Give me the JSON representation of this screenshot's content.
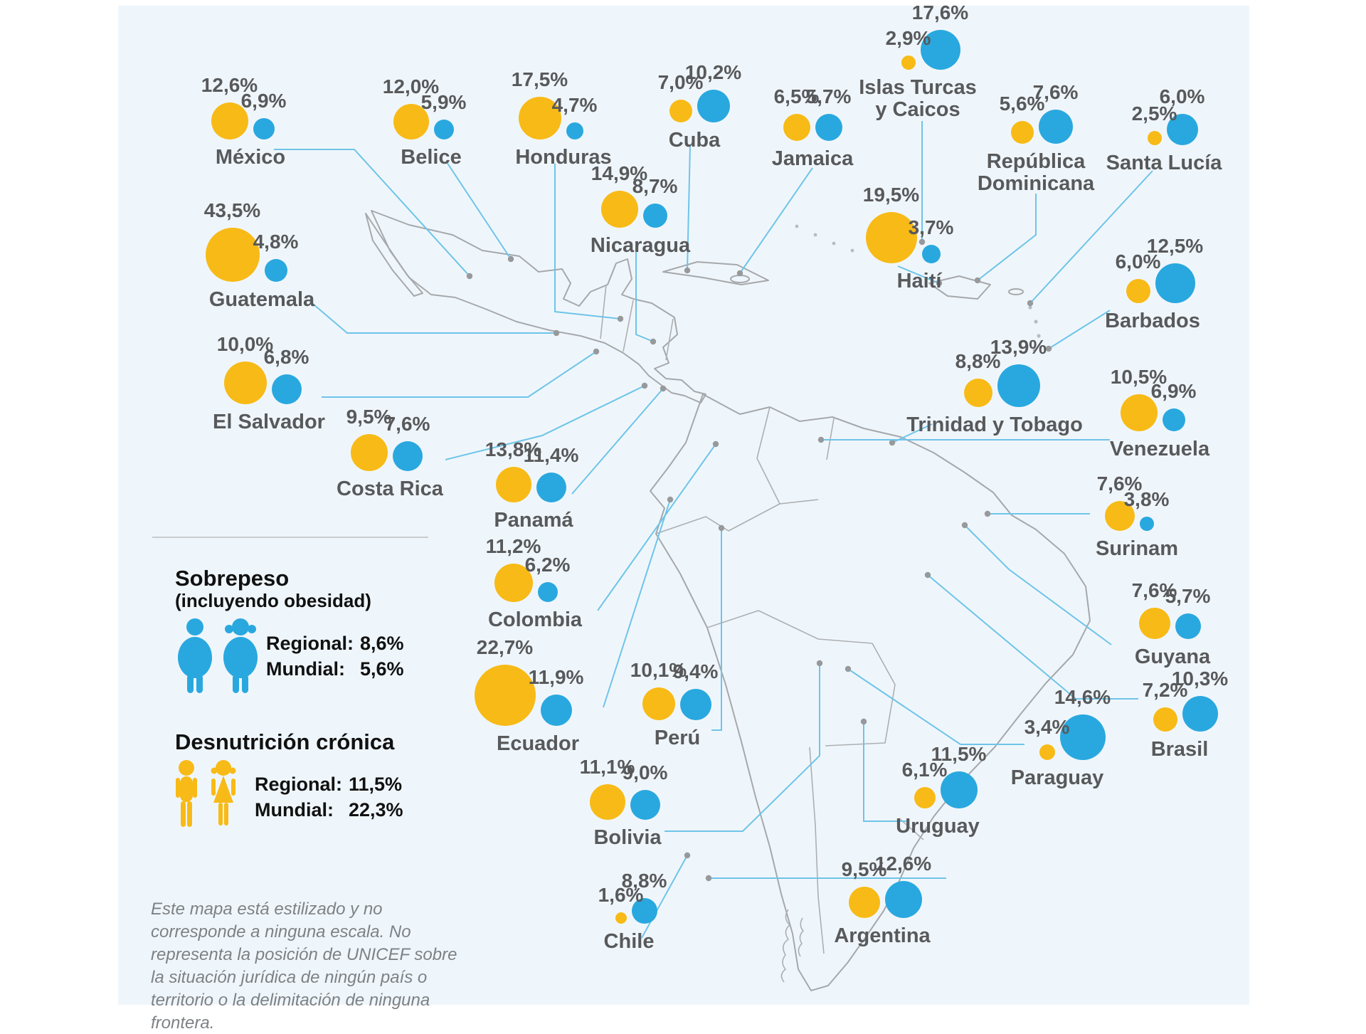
{
  "legend": {
    "sobrepeso": {
      "title": "Sobrepeso",
      "subtitle": "(incluyendo obesidad)",
      "rows": [
        {
          "label": "Regional:",
          "value": "8,6%"
        },
        {
          "label": "Mundial:",
          "value": "5,6%"
        }
      ]
    },
    "desnutricion": {
      "title": "Desnutrición crónica",
      "rows": [
        {
          "label": "Regional:",
          "value": "11,5%"
        },
        {
          "label": "Mundial:",
          "value": "22,3%"
        }
      ]
    }
  },
  "footnote": "Este mapa está estilizado y no corresponde a ninguna escala. No representa la posición de UNICEF sobre la situación jurídica de ningún país o territorio o la delimitación de ninguna frontera.",
  "colors": {
    "desnutricion_yellow": "#F8BA16",
    "sobrepeso_blue": "#29A8DF",
    "leader_line": "#6EC4E9",
    "map_outline": "#A6A8AB",
    "label_gray": "#58595B",
    "background": "#EFF6FB"
  },
  "chart_data": {
    "type": "bubble-map",
    "unit": "%",
    "series": [
      {
        "name": "Desnutrición crónica",
        "color": "#F8BA16",
        "regional": 11.5,
        "mundial": 22.3
      },
      {
        "name": "Sobrepeso (incluyendo obesidad)",
        "color": "#29A8DF",
        "regional": 8.6,
        "mundial": 5.6
      }
    ],
    "countries": [
      {
        "name": "México",
        "desnutricion_cronica": 12.6,
        "sobrepeso": 6.9
      },
      {
        "name": "Belice",
        "desnutricion_cronica": 12.0,
        "sobrepeso": 5.9
      },
      {
        "name": "Honduras",
        "desnutricion_cronica": 17.5,
        "sobrepeso": 4.7
      },
      {
        "name": "Cuba",
        "desnutricion_cronica": 7.0,
        "sobrepeso": 10.2
      },
      {
        "name": "Jamaica",
        "desnutricion_cronica": 6.5,
        "sobrepeso": 5.7
      },
      {
        "name": "Islas Turcas y Caicos",
        "desnutricion_cronica": 2.9,
        "sobrepeso": 17.6
      },
      {
        "name": "República Dominicana",
        "desnutricion_cronica": 5.6,
        "sobrepeso": 7.6
      },
      {
        "name": "Santa Lucía",
        "desnutricion_cronica": 2.5,
        "sobrepeso": 6.0
      },
      {
        "name": "Guatemala",
        "desnutricion_cronica": 43.5,
        "sobrepeso": 4.8
      },
      {
        "name": "Nicaragua",
        "desnutricion_cronica": 14.9,
        "sobrepeso": 8.7
      },
      {
        "name": "Haití",
        "desnutricion_cronica": 19.5,
        "sobrepeso": 3.7
      },
      {
        "name": "Barbados",
        "desnutricion_cronica": 6.0,
        "sobrepeso": 12.5
      },
      {
        "name": "El Salvador",
        "desnutricion_cronica": 10.0,
        "sobrepeso": 6.8
      },
      {
        "name": "Costa Rica",
        "desnutricion_cronica": 9.5,
        "sobrepeso": 7.6
      },
      {
        "name": "Trinidad y Tobago",
        "desnutricion_cronica": 8.8,
        "sobrepeso": 13.9
      },
      {
        "name": "Venezuela",
        "desnutricion_cronica": 10.5,
        "sobrepeso": 6.9
      },
      {
        "name": "Panamá",
        "desnutricion_cronica": 13.8,
        "sobrepeso": 11.4
      },
      {
        "name": "Surinam",
        "desnutricion_cronica": 7.6,
        "sobrepeso": 3.8
      },
      {
        "name": "Colombia",
        "desnutricion_cronica": 11.2,
        "sobrepeso": 6.2
      },
      {
        "name": "Guyana",
        "desnutricion_cronica": 7.6,
        "sobrepeso": 5.7
      },
      {
        "name": "Ecuador",
        "desnutricion_cronica": 22.7,
        "sobrepeso": 11.9
      },
      {
        "name": "Perú",
        "desnutricion_cronica": 10.1,
        "sobrepeso": 9.4
      },
      {
        "name": "Brasil",
        "desnutricion_cronica": 7.2,
        "sobrepeso": 10.3
      },
      {
        "name": "Paraguay",
        "desnutricion_cronica": 3.4,
        "sobrepeso": 14.6
      },
      {
        "name": "Bolivia",
        "desnutricion_cronica": 11.1,
        "sobrepeso": 9.0
      },
      {
        "name": "Uruguay",
        "desnutricion_cronica": 6.1,
        "sobrepeso": 11.5
      },
      {
        "name": "Chile",
        "desnutricion_cronica": 1.6,
        "sobrepeso": 8.8
      },
      {
        "name": "Argentina",
        "desnutricion_cronica": 9.5,
        "sobrepeso": 12.6
      }
    ]
  }
}
